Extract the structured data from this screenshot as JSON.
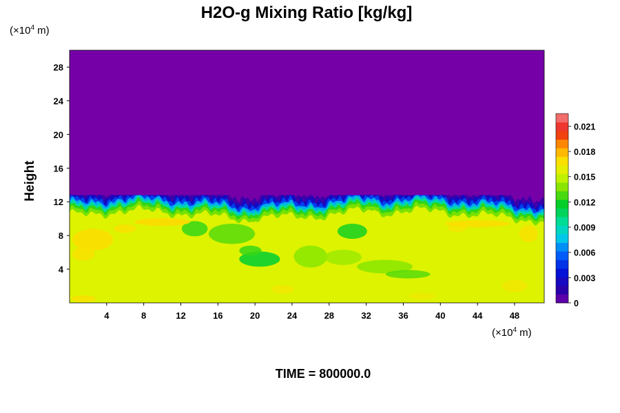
{
  "chart_data": {
    "type": "heatmap",
    "title": "H2O-g Mixing Ratio [kg/kg]",
    "ylabel": "Height",
    "xlabel": "",
    "x_unit": {
      "prefix": "(×10",
      "exponent": "4",
      "suffix": " m)"
    },
    "y_unit": {
      "prefix": "(×10",
      "exponent": "4",
      "suffix": " m)"
    },
    "x_ticks": [
      "4",
      "8",
      "12",
      "16",
      "20",
      "24",
      "28",
      "32",
      "36",
      "40",
      "44",
      "48"
    ],
    "y_ticks": [
      "4",
      "8",
      "12",
      "16",
      "20",
      "24",
      "28"
    ],
    "xlim": [
      0,
      51.2
    ],
    "ylim": [
      0,
      30
    ],
    "colorbar": {
      "ticks": [
        "0",
        "0.003",
        "0.006",
        "0.009",
        "0.012",
        "0.015",
        "0.018",
        "0.021"
      ],
      "range": [
        0,
        0.0225
      ],
      "levels": 22
    },
    "field_summary": {
      "upper_layer_value": 0,
      "lower_layer_value": 0.0155,
      "interface_height_range": [
        10,
        12.5
      ]
    },
    "footer": "TIME = 800000.0",
    "colors": {
      "top_layer": "#7500a8",
      "bottom_layer": "#d9f600"
    }
  }
}
